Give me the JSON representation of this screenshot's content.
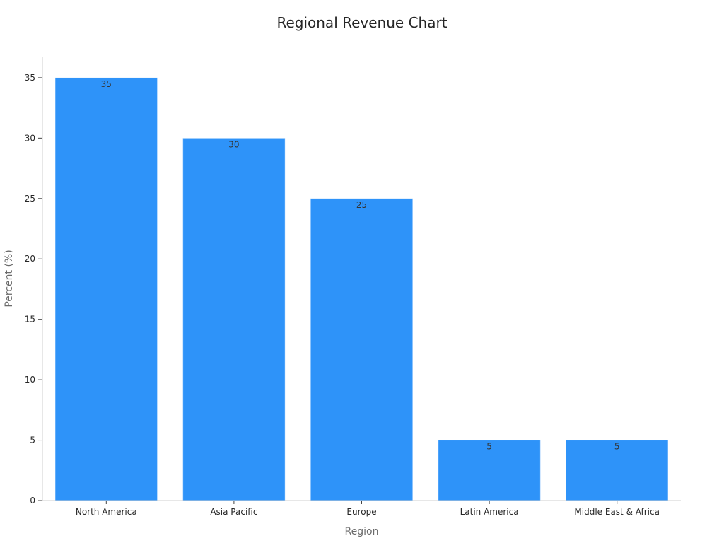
{
  "chart_data": {
    "type": "bar",
    "title": "Regional Revenue Chart",
    "xlabel": "Region",
    "ylabel": "Percent (%)",
    "categories": [
      "North America",
      "Asia Pacific",
      "Europe",
      "Latin America",
      "Middle East & Africa"
    ],
    "values": [
      35,
      30,
      25,
      5,
      5
    ],
    "data_labels": [
      "35",
      "30",
      "25",
      "5",
      "5"
    ],
    "ylim": [
      0,
      36.75
    ],
    "yticks": [
      0,
      5,
      10,
      15,
      20,
      25,
      30,
      35
    ],
    "grid": false,
    "legend": "none",
    "bar_color": "#2e93f9"
  }
}
